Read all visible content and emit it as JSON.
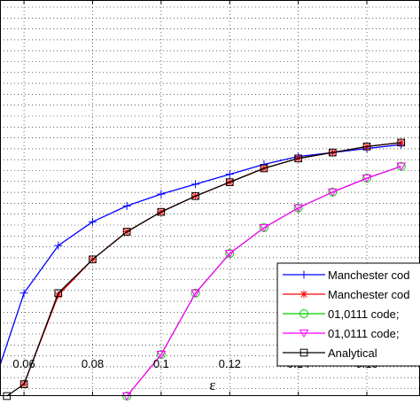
{
  "chart_data": {
    "type": "line",
    "xlabel": "ε",
    "ylabel": "",
    "xlim": [
      0.053,
      0.1755
    ],
    "ylim": [
      0.0,
      1.0
    ],
    "y_scale": "log",
    "grid": true,
    "x_ticks": [
      0.06,
      0.08,
      0.1,
      0.12,
      0.14,
      0.16
    ],
    "x_tick_labels": [
      "0.06",
      "0.08",
      "0.1",
      "0.12",
      "0.14",
      "0.16"
    ],
    "legend_position": "bottom-right",
    "series": [
      {
        "name": "Manchester cod",
        "color": "#0000ff",
        "marker": "plus",
        "x": [
          0.05,
          0.06,
          0.07,
          0.08,
          0.09,
          0.1,
          0.11,
          0.12,
          0.13,
          0.14,
          0.15,
          0.16,
          0.17
        ],
        "y": [
          0.0,
          0.26,
          0.38,
          0.44,
          0.48,
          0.51,
          0.535,
          0.56,
          0.585,
          0.605,
          0.615,
          0.625,
          0.635
        ]
      },
      {
        "name": "Manchester cod",
        "color": "#ff0000",
        "marker": "asterisk",
        "x": [
          0.06,
          0.07,
          0.08,
          0.09,
          0.1,
          0.11,
          0.12,
          0.13,
          0.14,
          0.15,
          0.16,
          0.17
        ],
        "y": [
          0.03,
          0.255,
          0.345,
          0.415,
          0.465,
          0.505,
          0.54,
          0.575,
          0.6,
          0.615,
          0.63,
          0.64
        ]
      },
      {
        "name": "01,0111 code;",
        "color": "#00cc00",
        "marker": "circle",
        "x": [
          0.09,
          0.1,
          0.11,
          0.12,
          0.13,
          0.14,
          0.15,
          0.16,
          0.17
        ],
        "y": [
          0.0,
          0.105,
          0.26,
          0.36,
          0.425,
          0.475,
          0.515,
          0.55,
          0.58
        ]
      },
      {
        "name": "01,0111 code;",
        "color": "#ff00ff",
        "marker": "triangle-down",
        "x": [
          0.09,
          0.1,
          0.11,
          0.12,
          0.13,
          0.14,
          0.15,
          0.16,
          0.17
        ],
        "y": [
          0.0,
          0.105,
          0.26,
          0.36,
          0.425,
          0.475,
          0.515,
          0.55,
          0.58
        ]
      },
      {
        "name": "Analytical",
        "color": "#000000",
        "marker": "square",
        "x": [
          0.055,
          0.06,
          0.07,
          0.08,
          0.09,
          0.1,
          0.11,
          0.12,
          0.13,
          0.14,
          0.15,
          0.16,
          0.17
        ],
        "y": [
          0.0,
          0.03,
          0.26,
          0.345,
          0.415,
          0.465,
          0.505,
          0.54,
          0.575,
          0.6,
          0.615,
          0.63,
          0.64
        ]
      }
    ]
  }
}
